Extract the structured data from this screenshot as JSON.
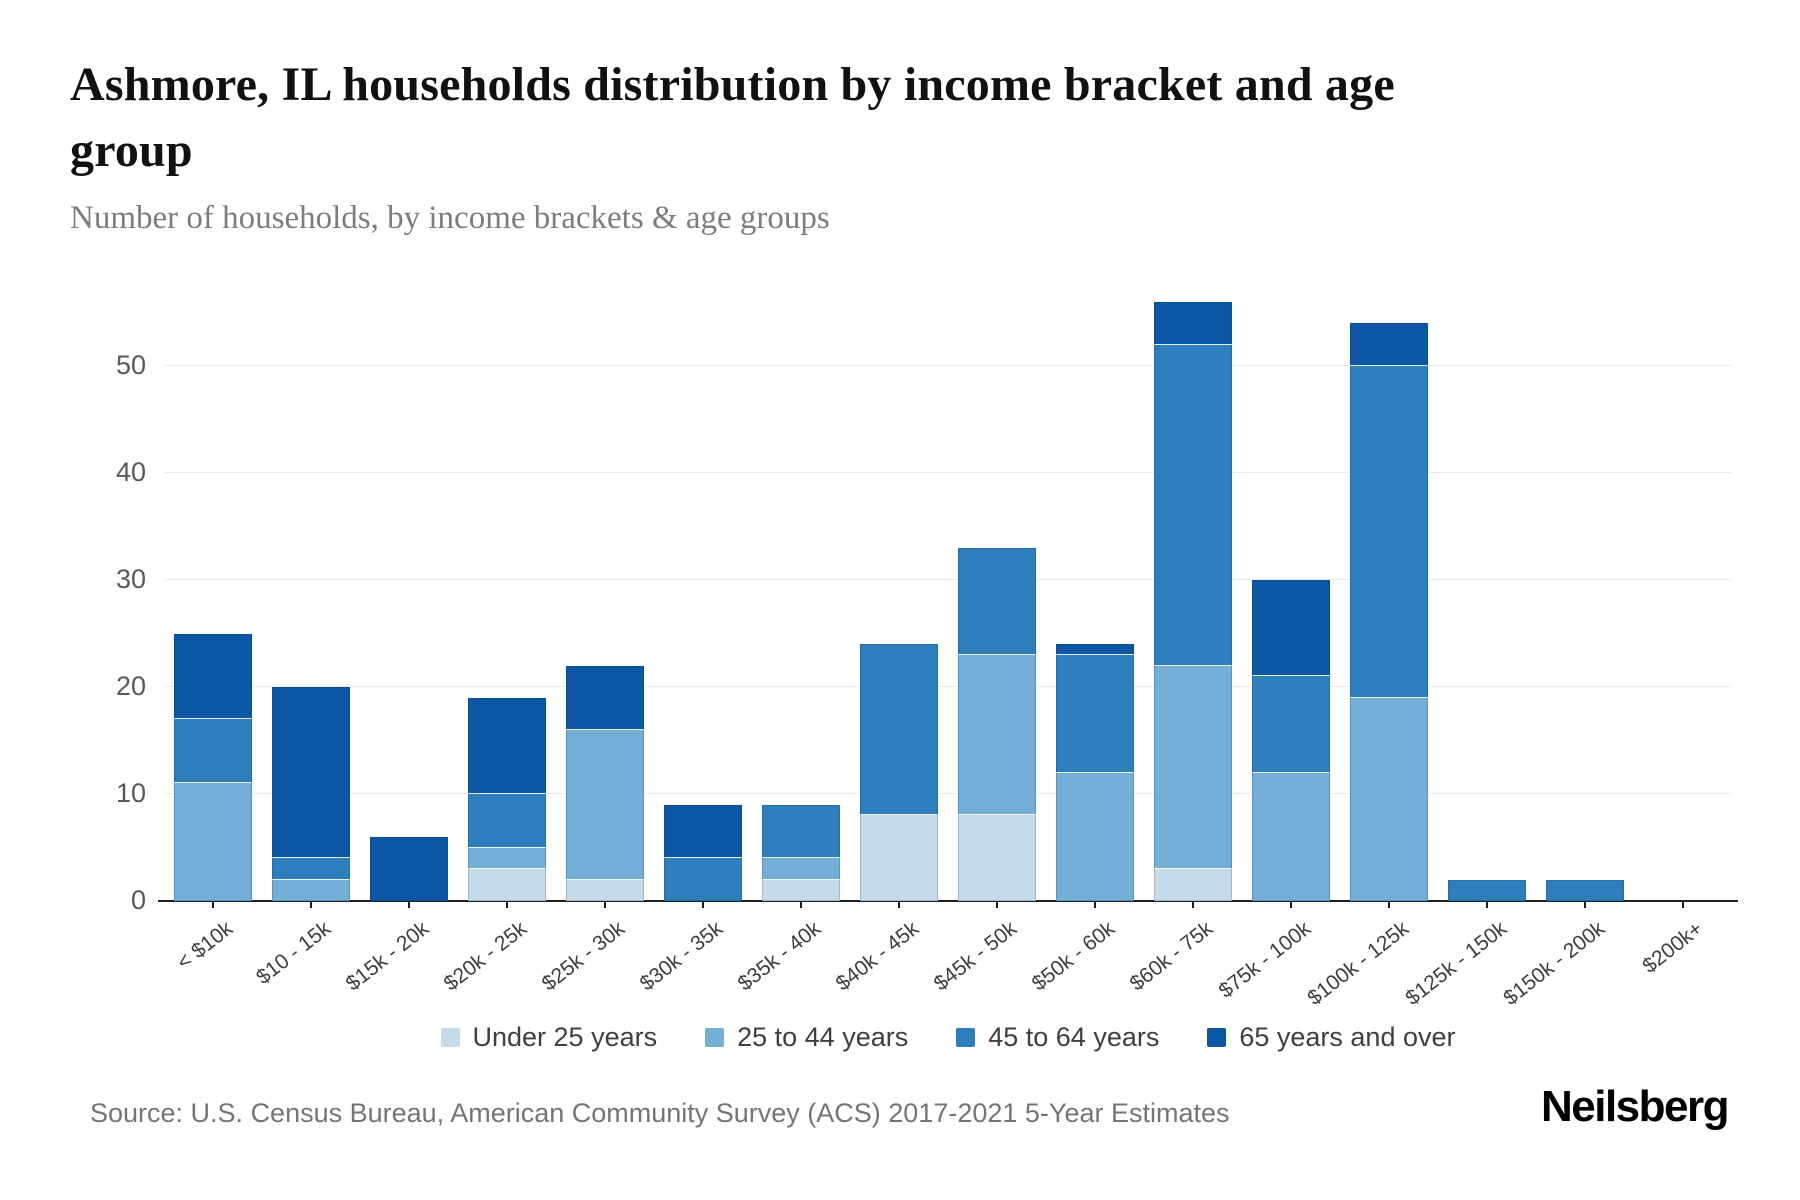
{
  "header": {
    "title": "Ashmore, IL households distribution by income bracket and age group",
    "subtitle": "Number of households, by income brackets & age groups"
  },
  "footer": {
    "source": "Source: U.S. Census Bureau, American Community Survey (ACS) 2017-2021 5-Year Estimates",
    "brand": "Neilsberg"
  },
  "colors": {
    "axis": "#1f1f1f",
    "gridline": "#ececec",
    "ytick_text": "#595959",
    "xtick_text": "#3d3d3d",
    "subtitle_text": "#7d7d7d",
    "source_text": "#757575"
  },
  "chart_data": {
    "type": "bar",
    "stacked": true,
    "title": "Ashmore, IL households distribution by income bracket and age group",
    "subtitle": "Number of households, by income brackets & age groups",
    "xlabel": "",
    "ylabel": "",
    "grid": true,
    "legend_position": "bottom",
    "ylim": [
      0,
      58
    ],
    "yticks": [
      0,
      10,
      20,
      30,
      40,
      50
    ],
    "categories": [
      "< $10k",
      "$10 - 15k",
      "$15k - 20k",
      "$20k - 25k",
      "$25k - 30k",
      "$30k - 35k",
      "$35k - 40k",
      "$40k - 45k",
      "$45k - 50k",
      "$50k - 60k",
      "$60k - 75k",
      "$75k - 100k",
      "$100k - 125k",
      "$125k - 150k",
      "$150k - 200k",
      "$200k+"
    ],
    "series": [
      {
        "name": "Under 25 years",
        "color": "#c6dbea",
        "values": [
          0,
          0,
          0,
          3,
          2,
          0,
          2,
          8,
          8,
          0,
          3,
          0,
          0,
          0,
          0,
          0
        ]
      },
      {
        "name": "25 to 44 years",
        "color": "#73aed6",
        "values": [
          11,
          2,
          0,
          2,
          14,
          0,
          2,
          0,
          15,
          12,
          19,
          12,
          19,
          0,
          0,
          0
        ]
      },
      {
        "name": "45 to 64 years",
        "color": "#2e7ebc",
        "values": [
          6,
          2,
          0,
          5,
          0,
          4,
          5,
          16,
          10,
          11,
          30,
          9,
          31,
          2,
          2,
          0
        ]
      },
      {
        "name": "65 years and over",
        "color": "#0b57a4",
        "values": [
          8,
          16,
          6,
          9,
          6,
          5,
          0,
          0,
          0,
          1,
          4,
          9,
          4,
          0,
          0,
          0
        ]
      }
    ],
    "totals": [
      25,
      20,
      6,
      19,
      22,
      9,
      9,
      24,
      33,
      24,
      56,
      30,
      54,
      2,
      2,
      0
    ]
  }
}
